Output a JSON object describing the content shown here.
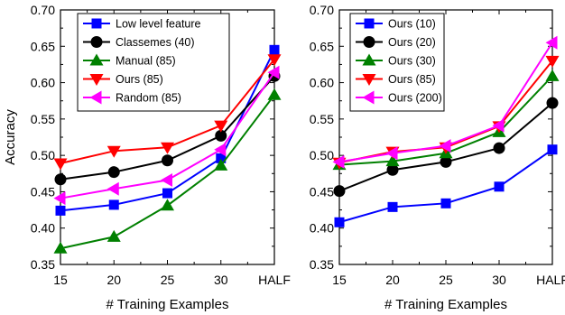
{
  "chart_data": [
    {
      "type": "line",
      "categories": [
        "15",
        "20",
        "25",
        "30",
        "HALF"
      ],
      "xlabel": "# Training Examples",
      "ylabel": "Accuracy",
      "ylim": [
        0.35,
        0.7
      ],
      "yticks": [
        "0.35",
        "0.40",
        "0.45",
        "0.50",
        "0.55",
        "0.60",
        "0.65",
        "0.70"
      ],
      "grid": false,
      "legend_position": "top-left",
      "series": [
        {
          "name": "Low level feature",
          "color": "#0000ff",
          "marker": "square",
          "values": [
            0.424,
            0.432,
            0.448,
            0.496,
            0.645
          ]
        },
        {
          "name": "Classemes (40)",
          "color": "#000000",
          "marker": "circle",
          "values": [
            0.467,
            0.477,
            0.493,
            0.527,
            0.609
          ]
        },
        {
          "name": "Manual (85)",
          "color": "#008000",
          "marker": "triangle-up",
          "values": [
            0.372,
            0.388,
            0.431,
            0.486,
            0.583
          ]
        },
        {
          "name": "Ours (85)",
          "color": "#ff0000",
          "marker": "triangle-down",
          "values": [
            0.489,
            0.506,
            0.511,
            0.541,
            0.632
          ]
        },
        {
          "name": "Random (85)",
          "color": "#ff00ff",
          "marker": "triangle-left",
          "values": [
            0.441,
            0.454,
            0.466,
            0.508,
            0.614
          ]
        }
      ]
    },
    {
      "type": "line",
      "categories": [
        "15",
        "20",
        "25",
        "30",
        "HALF"
      ],
      "xlabel": "# Training Examples",
      "ylabel": "",
      "ylim": [
        0.35,
        0.7
      ],
      "yticks": [
        "0.35",
        "0.40",
        "0.45",
        "0.50",
        "0.55",
        "0.60",
        "0.65",
        "0.70"
      ],
      "grid": false,
      "legend_position": "top-left",
      "series": [
        {
          "name": "Ours (10)",
          "color": "#0000ff",
          "marker": "square",
          "values": [
            0.408,
            0.429,
            0.434,
            0.457,
            0.508
          ]
        },
        {
          "name": "Ours (20)",
          "color": "#000000",
          "marker": "circle",
          "values": [
            0.451,
            0.48,
            0.491,
            0.51,
            0.572
          ]
        },
        {
          "name": "Ours (30)",
          "color": "#008000",
          "marker": "triangle-up",
          "values": [
            0.487,
            0.492,
            0.503,
            0.532,
            0.609
          ]
        },
        {
          "name": "Ours (85)",
          "color": "#ff0000",
          "marker": "triangle-down",
          "values": [
            0.49,
            0.505,
            0.511,
            0.54,
            0.63
          ]
        },
        {
          "name": "Ours (200)",
          "color": "#ff00ff",
          "marker": "triangle-left",
          "values": [
            0.491,
            0.503,
            0.513,
            0.541,
            0.655
          ]
        }
      ]
    }
  ]
}
